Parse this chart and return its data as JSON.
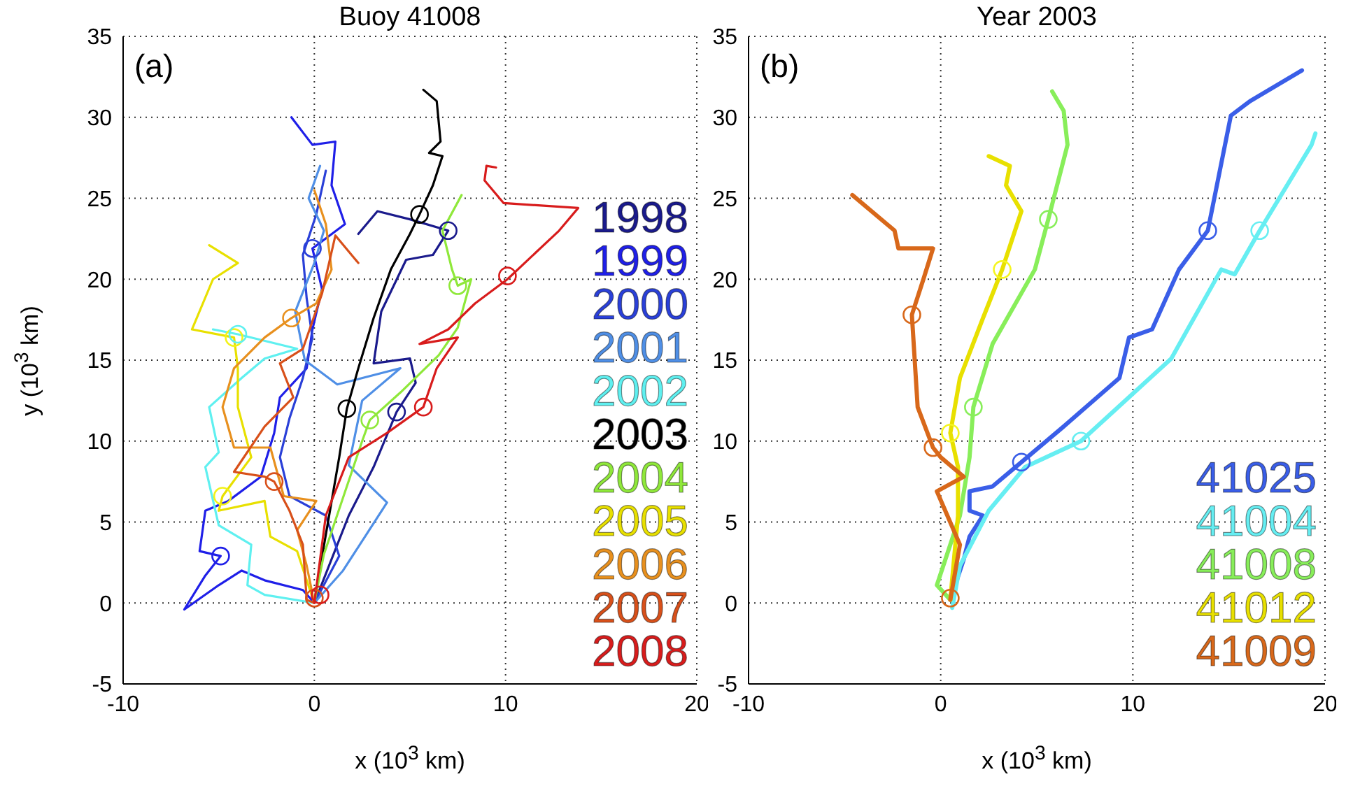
{
  "chart_data": [
    {
      "type": "line",
      "title": "Buoy 41008",
      "xlabel": "x (10$^{3}$ km)",
      "ylabel": "y (10$^{3}$ km)",
      "annotations": [
        "(a)"
      ],
      "xlim": [
        -10,
        20
      ],
      "ylim": [
        -5,
        35
      ],
      "xticks": [
        -10,
        0,
        10,
        20
      ],
      "yticks": [
        -5,
        0,
        5,
        10,
        15,
        20,
        25,
        30,
        35
      ],
      "grid": true,
      "legend": "bottom right",
      "marker": "none",
      "line_style": "solid",
      "series": [
        {
          "name": "1998",
          "color": "#1a1a8c",
          "x": [
            0,
            1.8,
            3.1,
            4.3,
            5.3,
            5,
            3.1,
            3.5,
            4.8,
            6.2,
            7,
            5,
            3.3,
            2.3
          ],
          "values": [
            0,
            5.4,
            8.4,
            11.8,
            13.6,
            15.1,
            14.8,
            18,
            21.2,
            21.5,
            23,
            23.7,
            24.2,
            22.8
          ]
        },
        {
          "name": "1999",
          "color": "#1f1fe8",
          "x": [
            0,
            -0.6,
            -2.6,
            -3.8,
            -5,
            -6.8,
            -5.7,
            -4.9,
            -6,
            -5.7,
            -4.5,
            -2.8,
            -2.1,
            -1.8,
            -0.4,
            -0.1,
            0.4,
            -0.1,
            1.6,
            0.9,
            1.1,
            -0.1,
            -1.2
          ],
          "values": [
            0,
            0.8,
            1.4,
            2,
            1.1,
            -0.4,
            1.7,
            2.9,
            3.2,
            5.7,
            6.3,
            7.8,
            10.5,
            12.7,
            14.5,
            16.9,
            19.4,
            21.9,
            23.4,
            25.8,
            28.5,
            28.3,
            30
          ]
        },
        {
          "name": "2000",
          "color": "#2a40d8",
          "x": [
            0,
            1.3,
            0.6,
            -1.3,
            -1.8,
            -1.3,
            -0.6,
            -0.1,
            -0.4,
            -0.6,
            0.1,
            0.6
          ],
          "values": [
            0,
            2.9,
            5.4,
            6.6,
            9,
            11.4,
            13.9,
            16.4,
            18.8,
            21.5,
            24,
            26.7
          ]
        },
        {
          "name": "2001",
          "color": "#4f8fe6",
          "x": [
            0,
            1.5,
            3.8,
            1.8,
            2.5,
            4.5,
            1.2,
            -0.5,
            -1,
            0,
            0.5,
            -0.3,
            0.3
          ],
          "values": [
            0,
            2,
            6.2,
            8.5,
            12.5,
            14.5,
            13.5,
            15,
            18,
            21,
            23,
            25,
            27
          ]
        },
        {
          "name": "2002",
          "color": "#5ff0f0",
          "x": [
            0,
            -2.6,
            -3.5,
            -3.3,
            -5,
            -5.7,
            -5,
            -5.5,
            -3.8,
            -2.6,
            -0.9,
            -4,
            -5.3
          ],
          "values": [
            0,
            0.5,
            1.1,
            3.6,
            4.8,
            8.4,
            9.3,
            12.1,
            13.9,
            15.1,
            15.7,
            16.6,
            16.9
          ]
        },
        {
          "name": "2003",
          "color": "#000000",
          "x": [
            0,
            0.1,
            1.3,
            1.7,
            2.3,
            3.1,
            4,
            5,
            5.5,
            6.2,
            6.7,
            6,
            6.6,
            6.4,
            5.7
          ],
          "values": [
            0,
            0.8,
            9,
            12,
            14.5,
            17.6,
            20.6,
            22.8,
            24,
            25.8,
            27.6,
            27.8,
            28.5,
            31,
            31.7
          ]
        },
        {
          "name": "2004",
          "color": "#8fe83a",
          "x": [
            0,
            0.5,
            1.5,
            2.5,
            2.9,
            4.5,
            6.5,
            7.5,
            8.2,
            7.5,
            7.2,
            6.7,
            7.7
          ],
          "values": [
            0,
            3,
            6.5,
            10,
            11.3,
            13,
            15.3,
            17,
            20,
            19.6,
            20.6,
            23,
            25.2
          ]
        },
        {
          "name": "2005",
          "color": "#e8e000",
          "x": [
            0,
            -0.4,
            -0.9,
            -2.3,
            -2.6,
            -5,
            -4.8,
            -3.3,
            -4,
            -4,
            -4.2,
            -6.4,
            -5.3,
            -4,
            -5.5
          ],
          "values": [
            0,
            1.4,
            3.2,
            4.1,
            6.3,
            5.7,
            6.6,
            9,
            12.1,
            14.5,
            16.4,
            16.9,
            20,
            21,
            22.1
          ]
        },
        {
          "name": "2006",
          "color": "#e8901e",
          "x": [
            0,
            -0.4,
            -0.9,
            0.1,
            -1.6,
            -2.3,
            -4.2,
            -4.8,
            -4.2,
            -2.6,
            -1.2,
            0.1,
            0.9,
            0.6,
            0
          ],
          "values": [
            0,
            2.3,
            4.5,
            6.3,
            6.6,
            9.6,
            9.6,
            12.1,
            14.5,
            16.4,
            17.6,
            18.5,
            20.6,
            23.4,
            25.5
          ]
        },
        {
          "name": "2007",
          "color": "#d8501a",
          "x": [
            0,
            -0.4,
            -0.6,
            -1.3,
            -2.1,
            -2.6,
            -4.2,
            -2.6,
            -1.1,
            -1.8,
            -0.6,
            0.4,
            1.1,
            2.3
          ],
          "values": [
            0,
            0.2,
            3.6,
            5.7,
            7.5,
            7.8,
            8.1,
            10.9,
            12.7,
            14.8,
            15.7,
            19.1,
            22.7,
            21
          ]
        },
        {
          "name": "2008",
          "color": "#d81c1c",
          "x": [
            0,
            0.6,
            1.8,
            3.8,
            5.7,
            6.4,
            7.5,
            5.5,
            7,
            8.4,
            10.1,
            12.8,
            13.8,
            9.9,
            8.9,
            9,
            9.5
          ],
          "values": [
            0,
            5.4,
            9,
            10.5,
            12.1,
            14.5,
            16.4,
            16,
            16.9,
            18.5,
            20,
            23,
            24.4,
            24.7,
            26.1,
            27,
            26.9
          ]
        },
        {
          "type": "scatter",
          "marker": "circle",
          "x": [
            0,
            0.3,
            1.7,
            5.5,
            4.3,
            7,
            -4.9,
            -0.1,
            2.9,
            7.5,
            5.7,
            10.1,
            -4.2,
            -4.8,
            -1.2,
            -2.1,
            -4
          ],
          "values": [
            0.3,
            0.5,
            12,
            24,
            11.8,
            23,
            2.9,
            21.9,
            11.3,
            19.6,
            12.1,
            20.2,
            16.4,
            6.6,
            17.6,
            7.5,
            16.6
          ],
          "colors": [
            "#d8501a",
            "#d81c1c",
            "#000000",
            "#000000",
            "#1a1a8c",
            "#1a1a8c",
            "#1f1fe8",
            "#2a40d8",
            "#8fe83a",
            "#8fe83a",
            "#d81c1c",
            "#d81c1c",
            "#f2f21a",
            "#f2f21a",
            "#e8901e",
            "#d8501a",
            "#5ff0f0"
          ]
        }
      ]
    },
    {
      "type": "line",
      "title": "Year 2003",
      "xlabel": "x (10$^{3}$ km)",
      "annotations": [
        "(b)"
      ],
      "xlim": [
        -10,
        20
      ],
      "ylim": [
        -5,
        35
      ],
      "xticks": [
        -10,
        0,
        10,
        20
      ],
      "yticks": [
        -5,
        0,
        5,
        10,
        15,
        20,
        25,
        30,
        35
      ],
      "grid": true,
      "legend": "bottom right",
      "marker": "none",
      "line_style": "solid",
      "series": [
        {
          "name": "41025",
          "color": "#3a5ee8",
          "x": [
            0.5,
            1.2,
            1.5,
            2.2,
            1.5,
            1.5,
            2.7,
            4.2,
            6.4,
            9.3,
            9.8,
            11,
            12.4,
            13.9,
            15.1,
            16.1,
            18.8
          ],
          "values": [
            0.2,
            2.7,
            4.1,
            5.4,
            5.7,
            6.9,
            7.2,
            8.7,
            10.9,
            13.9,
            16.4,
            16.9,
            20.6,
            23,
            30.1,
            31,
            32.9
          ]
        },
        {
          "name": "41004",
          "color": "#66eef2",
          "x": [
            0.6,
            1,
            2.5,
            4.4,
            7.3,
            12,
            14.6,
            15.3,
            16.6,
            19.3,
            19.5
          ],
          "values": [
            -0.3,
            2.3,
            5.7,
            8.4,
            10,
            15.1,
            20.6,
            20.3,
            23,
            28.3,
            29
          ]
        },
        {
          "name": "41008",
          "color": "#88ee5a",
          "x": [
            0.5,
            -0.2,
            1,
            1.5,
            1.7,
            2.7,
            4.9,
            5.6,
            6.6,
            6.4,
            5.8
          ],
          "values": [
            0.2,
            1.1,
            5.4,
            9,
            12.1,
            16,
            20.6,
            23.7,
            28.3,
            30.4,
            31.6
          ]
        },
        {
          "name": "41012",
          "color": "#e8e000",
          "x": [
            0.5,
            0.9,
            0.9,
            0.5,
            1,
            2.2,
            3.2,
            4.2,
            3.4,
            3.6,
            2.5
          ],
          "values": [
            0.2,
            5.4,
            8.4,
            10.5,
            13.9,
            17.6,
            20.6,
            24.2,
            25.8,
            27,
            27.6
          ]
        },
        {
          "name": "41009",
          "color": "#d8681a",
          "x": [
            0.5,
            1,
            -0.2,
            1.2,
            0,
            -0.4,
            -1.2,
            -1.5,
            -0.9,
            -0.4,
            -2.2,
            -2.4,
            -4.6
          ],
          "values": [
            0.2,
            3.6,
            6.9,
            7.8,
            9,
            9.6,
            12.1,
            17.8,
            20,
            21.9,
            21.9,
            23,
            25.2
          ]
        },
        {
          "type": "scatter",
          "marker": "circle",
          "x": [
            0.5,
            4.2,
            13.9,
            7.3,
            16.6,
            1.7,
            5.6,
            0.5,
            3.2,
            -0.4,
            -1.5
          ],
          "values": [
            0.3,
            8.7,
            23,
            10,
            23,
            12.1,
            23.7,
            10.5,
            20.6,
            9.6,
            17.8
          ],
          "colors": [
            "#d8681a",
            "#3a5ee8",
            "#3a5ee8",
            "#66eef2",
            "#66eef2",
            "#88ee5a",
            "#88ee5a",
            "#f5f520",
            "#f5f520",
            "#d8681a",
            "#d8681a"
          ]
        }
      ]
    }
  ]
}
